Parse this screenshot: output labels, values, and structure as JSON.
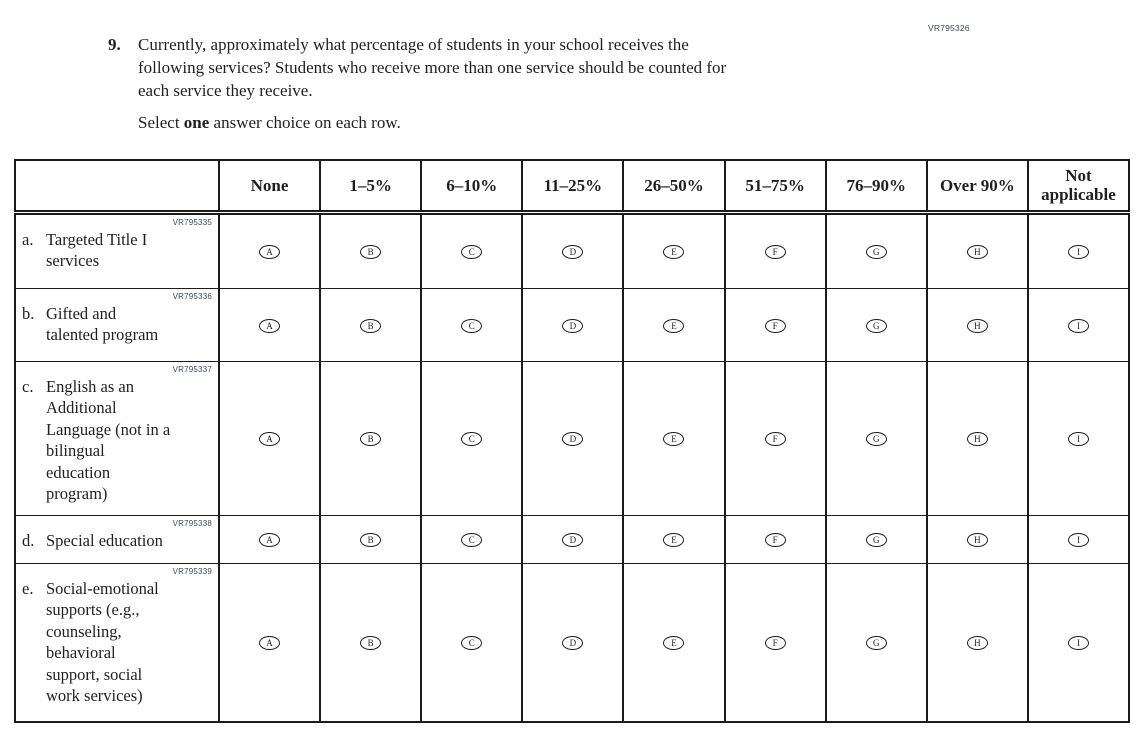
{
  "page": {
    "form_code": "VR795326"
  },
  "question": {
    "number": "9.",
    "text": "Currently, approximately what percentage of students in your school receives the\nfollowing services? Students who receive more than one service should be counted for\neach service they receive.",
    "instruction": {
      "prefix": "Select ",
      "bold": "one",
      "suffix": " answer choice on each row."
    }
  },
  "table": {
    "columns": [
      "None",
      "1–5%",
      "6–10%",
      "11–25%",
      "26–50%",
      "51–75%",
      "76–90%",
      "Over 90%",
      "Not applicable"
    ],
    "options": [
      "A",
      "B",
      "C",
      "D",
      "E",
      "F",
      "G",
      "H",
      "I"
    ],
    "rows": [
      {
        "code": "VR795335",
        "prefix": "a.",
        "label": "Targeted Title I\nservices"
      },
      {
        "code": "VR795336",
        "prefix": "b.",
        "label": "Gifted and\ntalented program"
      },
      {
        "code": "VR795337",
        "prefix": "c.",
        "label": "English as an\nAdditional\nLanguage (not in a\nbilingual\neducation\nprogram)"
      },
      {
        "code": "VR795338",
        "prefix": "d.",
        "label": "Special education"
      },
      {
        "code": "VR795339",
        "prefix": "e.",
        "label": "Social-emotional\nsupports (e.g.,\ncounseling,\nbehavioral\nsupport, social\nwork services)"
      }
    ]
  }
}
